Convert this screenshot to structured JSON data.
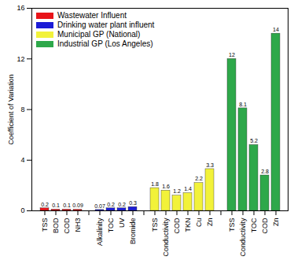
{
  "chart_data": {
    "type": "bar",
    "y_label": "Coefficient of Variation",
    "categories": [
      "TSS",
      "BOD",
      "COD",
      "NH3",
      null,
      "Alkalinity",
      "TOC",
      "UV",
      "Bromide",
      null,
      "TSS",
      "Conductivity",
      "COD",
      "TKN",
      "Cu",
      "Zn",
      null,
      "TSS",
      "Conductivity",
      "TOC",
      "COD",
      "Zn"
    ],
    "series": [
      {
        "name": "Wastewater Influent",
        "color": "#e8141a",
        "values": [
          0.2,
          0.1,
          0.1,
          0.09,
          null,
          null,
          null,
          null,
          null,
          null,
          null,
          null,
          null,
          null,
          null,
          null,
          null,
          null,
          null,
          null,
          null,
          null
        ]
      },
      {
        "name": "Drinking water plant influent",
        "color": "#1c1cd6",
        "values": [
          null,
          null,
          null,
          null,
          null,
          0.07,
          0.2,
          0.2,
          0.3,
          null,
          null,
          null,
          null,
          null,
          null,
          null,
          null,
          null,
          null,
          null,
          null,
          null
        ]
      },
      {
        "name": "Municipal GP (National)",
        "color": "#f2f23a",
        "values": [
          null,
          null,
          null,
          null,
          null,
          null,
          null,
          null,
          null,
          null,
          1.8,
          1.6,
          1.2,
          1.4,
          2.2,
          3.3,
          null,
          null,
          null,
          null,
          null,
          null
        ]
      },
      {
        "name": "Industrial GP (Los Angeles)",
        "color": "#2ea84a",
        "values": [
          null,
          null,
          null,
          null,
          null,
          null,
          null,
          null,
          null,
          null,
          null,
          null,
          null,
          null,
          null,
          null,
          null,
          12,
          8.1,
          5.2,
          2.8,
          14
        ]
      }
    ],
    "ylim": [
      0,
      16
    ],
    "yticks": [
      0,
      4,
      8,
      12,
      16
    ],
    "grid": false,
    "legend": "top-left",
    "data_labels": true
  }
}
